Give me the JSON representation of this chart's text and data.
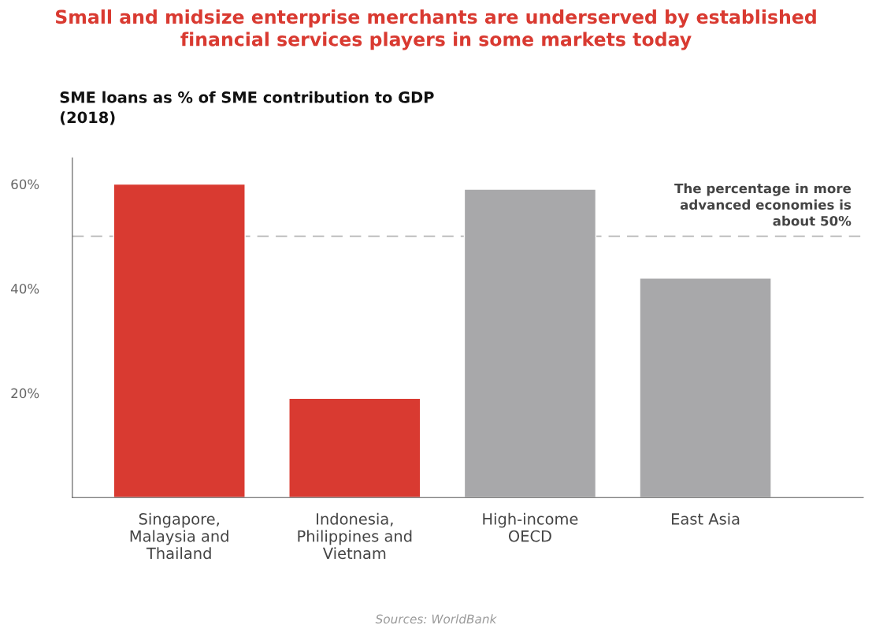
{
  "chart_data": {
    "type": "bar",
    "title": "Small and midsize enterprise merchants are underserved by established\nfinancial services players in some markets today",
    "subtitle": "SME loans as % of SME contribution to GDP\n(2018)",
    "categories": [
      "Singapore,\nMalaysia and\nThailand",
      "Indonesia,\nPhilippines and\nVietnam",
      "High-income\nOECD",
      "East Asia"
    ],
    "values": [
      60,
      19,
      59,
      42
    ],
    "colors": [
      "#d93a31",
      "#d93a31",
      "#a8a8aa",
      "#a8a8aa"
    ],
    "ylim": [
      0,
      65
    ],
    "yticks": [
      {
        "value": 20,
        "label": "20%"
      },
      {
        "value": 40,
        "label": "40%"
      },
      {
        "value": 60,
        "label": "60%"
      }
    ],
    "grid": false,
    "ref_lines": [
      {
        "axis": "y",
        "value": 50,
        "label": "The percentage in more\nadvanced economies is\nabout 50%",
        "color": "#bdbdbd",
        "line_style": "dashed"
      }
    ],
    "annotations": [
      "Sources: WorldBank"
    ]
  }
}
